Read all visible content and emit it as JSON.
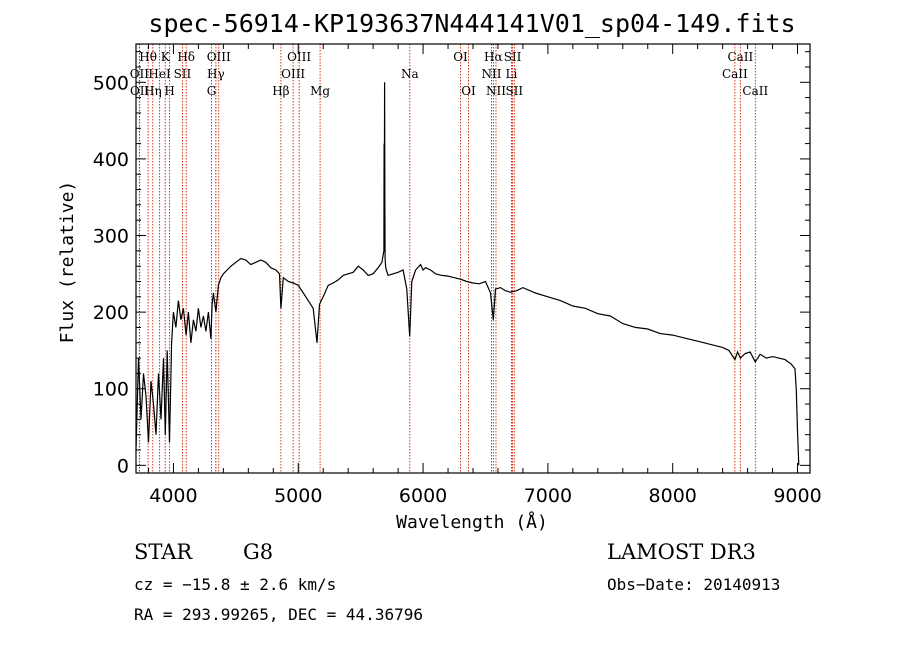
{
  "chart_data": {
    "type": "line",
    "title": "spec-56914-KP193637N444141V01_sp04-149.fits",
    "xlabel": "Wavelength (Å)",
    "ylabel": "Flux (relative)",
    "xlim": [
      3700,
      9100
    ],
    "ylim": [
      -10,
      550
    ],
    "xticks": [
      4000,
      5000,
      6000,
      7000,
      8000,
      9000
    ],
    "yticks": [
      0,
      100,
      200,
      300,
      400,
      500
    ],
    "series": [
      {
        "name": "spectrum",
        "x": [
          3700,
          3720,
          3740,
          3760,
          3780,
          3800,
          3820,
          3840,
          3860,
          3880,
          3900,
          3920,
          3935,
          3950,
          3968,
          3985,
          4000,
          4020,
          4040,
          4060,
          4080,
          4101,
          4120,
          4140,
          4160,
          4180,
          4200,
          4220,
          4240,
          4260,
          4280,
          4300,
          4310,
          4320,
          4340,
          4360,
          4380,
          4400,
          4430,
          4460,
          4500,
          4540,
          4580,
          4620,
          4660,
          4700,
          4740,
          4780,
          4820,
          4850,
          4861,
          4880,
          4920,
          4960,
          5000,
          5040,
          5080,
          5120,
          5150,
          5170,
          5184,
          5200,
          5240,
          5280,
          5320,
          5360,
          5400,
          5440,
          5480,
          5520,
          5560,
          5600,
          5640,
          5670,
          5686,
          5688,
          5690,
          5692,
          5694,
          5696,
          5700,
          5705,
          5720,
          5760,
          5800,
          5840,
          5870,
          5893,
          5910,
          5940,
          5980,
          6000,
          6020,
          6060,
          6100,
          6150,
          6200,
          6250,
          6300,
          6350,
          6400,
          6450,
          6500,
          6540,
          6563,
          6580,
          6620,
          6660,
          6700,
          6750,
          6800,
          6900,
          7000,
          7100,
          7200,
          7300,
          7400,
          7500,
          7600,
          7700,
          7800,
          7900,
          8000,
          8100,
          8200,
          8300,
          8400,
          8450,
          8498,
          8520,
          8542,
          8580,
          8620,
          8662,
          8700,
          8750,
          8800,
          8850,
          8900,
          8950,
          8980,
          8990,
          9000,
          9010
        ],
        "values": [
          20,
          140,
          60,
          120,
          90,
          30,
          110,
          80,
          40,
          120,
          60,
          140,
          40,
          150,
          30,
          160,
          200,
          180,
          215,
          190,
          205,
          170,
          200,
          160,
          190,
          175,
          205,
          180,
          195,
          175,
          200,
          165,
          210,
          225,
          200,
          235,
          245,
          250,
          255,
          260,
          265,
          270,
          268,
          262,
          265,
          268,
          265,
          258,
          255,
          250,
          205,
          245,
          240,
          238,
          235,
          225,
          215,
          205,
          160,
          210,
          215,
          220,
          235,
          238,
          242,
          248,
          250,
          252,
          260,
          255,
          248,
          250,
          258,
          265,
          280,
          420,
          380,
          500,
          330,
          270,
          260,
          255,
          248,
          250,
          252,
          255,
          230,
          168,
          240,
          255,
          262,
          255,
          258,
          255,
          250,
          248,
          247,
          245,
          243,
          240,
          238,
          237,
          240,
          225,
          190,
          230,
          232,
          228,
          226,
          228,
          232,
          225,
          220,
          215,
          208,
          205,
          198,
          195,
          185,
          180,
          178,
          172,
          170,
          166,
          162,
          158,
          154,
          150,
          138,
          148,
          140,
          146,
          148,
          135,
          145,
          140,
          142,
          140,
          138,
          132,
          126,
          98,
          45,
          0
        ]
      }
    ],
    "lines": [
      {
        "name": "Hθ",
        "wavelength": 3797,
        "row": 1
      },
      {
        "name": "OII",
        "wavelength": 3727,
        "row": 2
      },
      {
        "name": "OII",
        "wavelength": 3729,
        "row": 3
      },
      {
        "name": "Hη",
        "wavelength": 3835,
        "row": 3
      },
      {
        "name": "HeI",
        "wavelength": 3889,
        "row": 2
      },
      {
        "name": "K",
        "wavelength": 3934,
        "row": 1
      },
      {
        "name": "SII",
        "wavelength": 4072,
        "row": 2
      },
      {
        "name": "H",
        "wavelength": 3969,
        "row": 3
      },
      {
        "name": "Hδ",
        "wavelength": 4102,
        "row": 1
      },
      {
        "name": "OIII",
        "wavelength": 4363,
        "row": 1
      },
      {
        "name": "Hγ",
        "wavelength": 4340,
        "row": 2
      },
      {
        "name": "G",
        "wavelength": 4305,
        "row": 3
      },
      {
        "name": "Hβ",
        "wavelength": 4861,
        "row": 3
      },
      {
        "name": "OIII",
        "wavelength": 4959,
        "row": 2
      },
      {
        "name": "OIII",
        "wavelength": 5007,
        "row": 1
      },
      {
        "name": "Mg",
        "wavelength": 5175,
        "row": 3
      },
      {
        "name": "Na",
        "wavelength": 5894,
        "row": 2
      },
      {
        "name": "OI",
        "wavelength": 6300,
        "row": 1
      },
      {
        "name": "OI",
        "wavelength": 6364,
        "row": 3
      },
      {
        "name": "Hα",
        "wavelength": 6563,
        "row": 1
      },
      {
        "name": "NII",
        "wavelength": 6548,
        "row": 2
      },
      {
        "name": "NII",
        "wavelength": 6584,
        "row": 3
      },
      {
        "name": "SII",
        "wavelength": 6717,
        "row": 1
      },
      {
        "name": "Li",
        "wavelength": 6708,
        "row": 2
      },
      {
        "name": "SII",
        "wavelength": 6731,
        "row": 3
      },
      {
        "name": "CaII",
        "wavelength": 8542,
        "row": 1
      },
      {
        "name": "CaII",
        "wavelength": 8498,
        "row": 2
      },
      {
        "name": "CaII",
        "wavelength": 8662,
        "row": 3
      }
    ]
  },
  "info": {
    "class_label": "STAR",
    "subclass": "G8",
    "survey": "LAMOST DR3",
    "cz": "cz = −15.8 ± 2.6 km/s",
    "obs_date": "Obs−Date: 20140913",
    "coords": "RA = 293.99265, DEC =  44.36796"
  }
}
